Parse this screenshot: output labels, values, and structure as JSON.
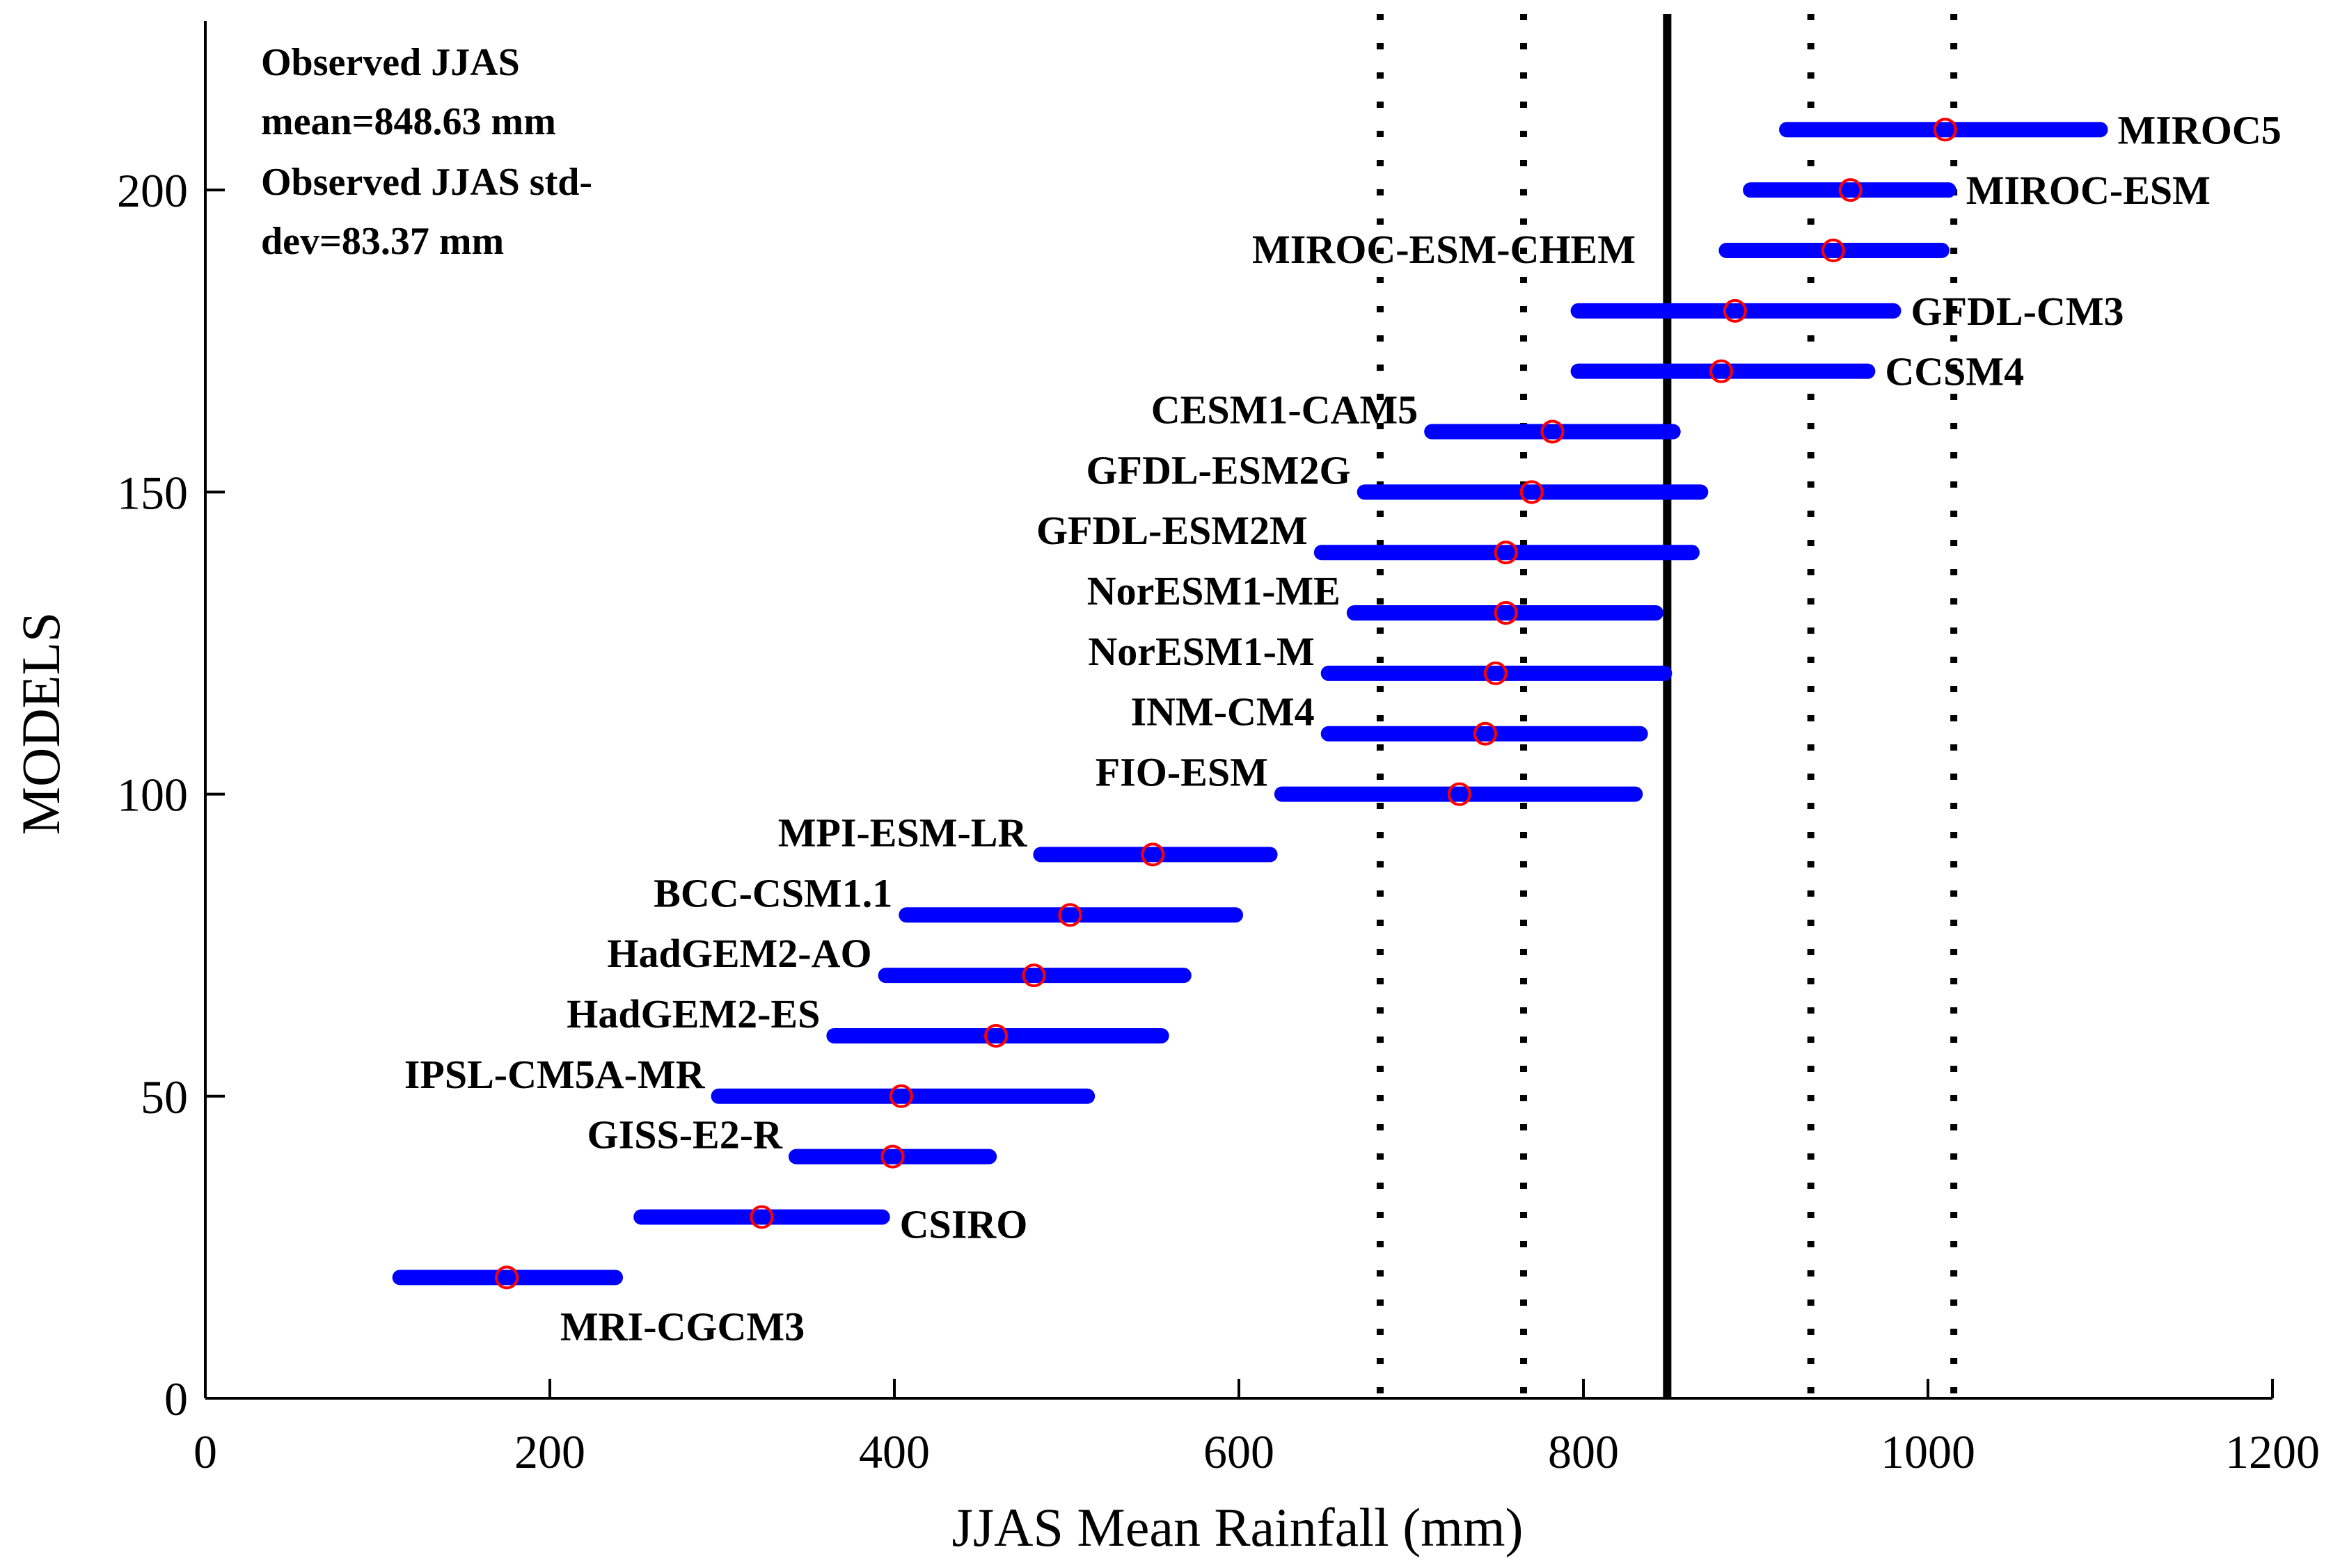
{
  "chart_data": {
    "type": "range-dot",
    "xlabel": "JJAS  Mean Rainfall (mm)",
    "ylabel": "MODELS",
    "xlim": [
      0,
      1200
    ],
    "ylim": [
      0,
      228
    ],
    "xticks": [
      0,
      200,
      400,
      600,
      800,
      1000,
      1200
    ],
    "yticks": [
      0,
      50,
      100,
      150,
      200
    ],
    "annotations": [
      "Observed JJAS",
      "mean=848.63 mm",
      "Observed JJAS std-",
      "dev=83.37 mm"
    ],
    "observed_mean": 848.63,
    "observed_std": 83.37,
    "reference_lines": [
      {
        "x": 848.63,
        "style": "solid"
      },
      {
        "x": 765.26,
        "style": "dotted"
      },
      {
        "x": 932.0,
        "style": "dotted"
      },
      {
        "x": 682,
        "style": "dotted"
      },
      {
        "x": 1015,
        "style": "dotted"
      }
    ],
    "series": [
      {
        "name": "MIROC5",
        "y": 210,
        "min": 918,
        "max": 1100,
        "mean": 1010
      },
      {
        "name": "MIROC-ESM",
        "y": 200,
        "min": 897,
        "max": 1012,
        "mean": 955
      },
      {
        "name": "MIROC-ESM-CHEM",
        "y": 190,
        "min": 883,
        "max": 1008,
        "mean": 945
      },
      {
        "name": "GFDL-CM3",
        "y": 180,
        "min": 797,
        "max": 980,
        "mean": 888
      },
      {
        "name": "CCSM4",
        "y": 170,
        "min": 797,
        "max": 965,
        "mean": 880
      },
      {
        "name": "CESM1-CAM5",
        "y": 160,
        "min": 712,
        "max": 852,
        "mean": 782
      },
      {
        "name": "GFDL-ESM2G",
        "y": 150,
        "min": 673,
        "max": 868,
        "mean": 770
      },
      {
        "name": "GFDL-ESM2M",
        "y": 140,
        "min": 648,
        "max": 863,
        "mean": 755
      },
      {
        "name": "NorESM1-ME",
        "y": 130,
        "min": 667,
        "max": 842,
        "mean": 755
      },
      {
        "name": "NorESM1-M",
        "y": 120,
        "min": 652,
        "max": 847,
        "mean": 749
      },
      {
        "name": "INM-CM4",
        "y": 110,
        "min": 652,
        "max": 833,
        "mean": 743
      },
      {
        "name": "FIO-ESM",
        "y": 100,
        "min": 625,
        "max": 830,
        "mean": 728
      },
      {
        "name": "MPI-ESM-LR",
        "y": 90,
        "min": 485,
        "max": 618,
        "mean": 550
      },
      {
        "name": "BCC-CSM1.1",
        "y": 80,
        "min": 407,
        "max": 598,
        "mean": 502
      },
      {
        "name": "HadGEM2-AO",
        "y": 70,
        "min": 395,
        "max": 568,
        "mean": 481
      },
      {
        "name": "HadGEM2-ES",
        "y": 60,
        "min": 365,
        "max": 555,
        "mean": 459
      },
      {
        "name": "IPSL-CM5A-MR",
        "y": 50,
        "min": 298,
        "max": 512,
        "mean": 404
      },
      {
        "name": "GISS-E2-R",
        "y": 40,
        "min": 343,
        "max": 455,
        "mean": 399
      },
      {
        "name": "CSIRO",
        "y": 30,
        "min": 253,
        "max": 393,
        "mean": 323
      },
      {
        "name": "MRI-CGCM3",
        "y": 20,
        "min": 113,
        "max": 238,
        "mean": 175
      }
    ],
    "colors": {
      "range": "#0000ff",
      "mean_marker": "#ff0000",
      "reference": "#000000"
    }
  }
}
